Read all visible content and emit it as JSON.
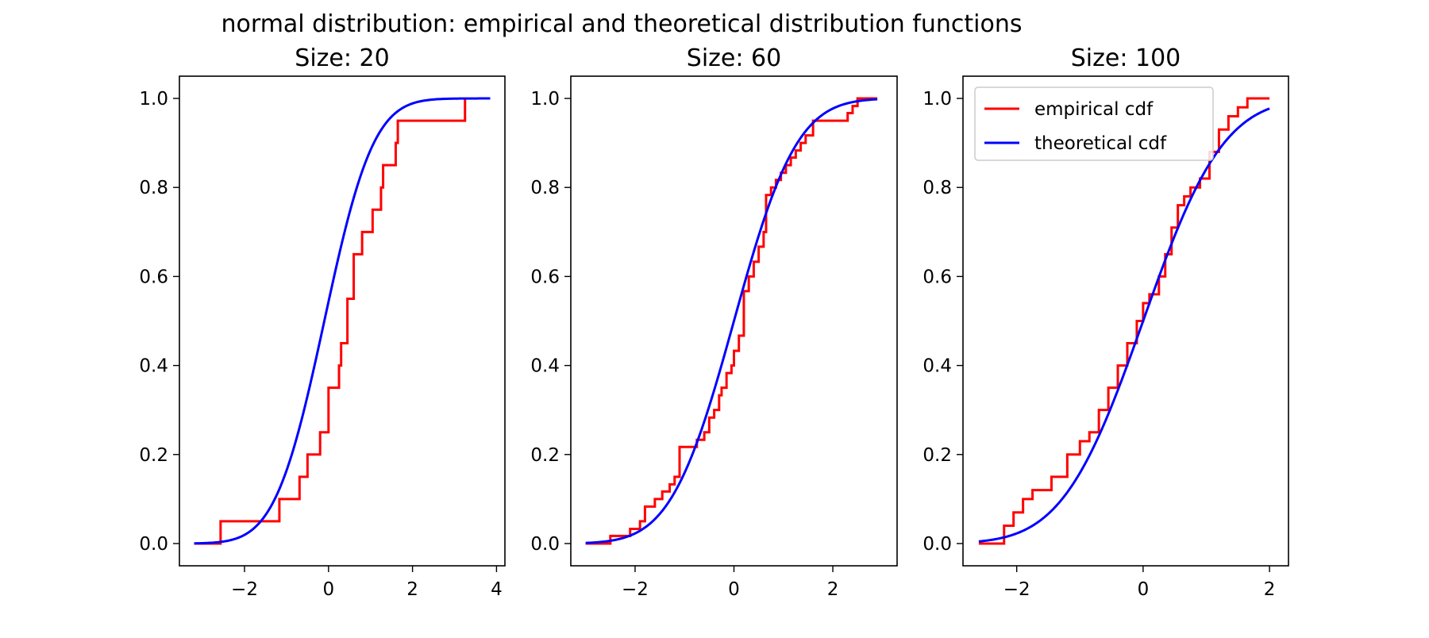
{
  "figure": {
    "title": "normal distribution: empirical and theoretical distribution functions"
  },
  "legend": {
    "empirical_label": "empirical cdf",
    "theoretical_label": "theoretical cdf",
    "placement": "upper-left of third panel"
  },
  "colors": {
    "empirical": "#ff0000",
    "theoretical": "#0000ff",
    "axes": "#000000",
    "background": "#ffffff"
  },
  "chart_data": [
    {
      "type": "line",
      "title": "Size: 20",
      "xlabel": "",
      "ylabel": "",
      "xlim": [
        -3.55,
        4.2
      ],
      "ylim": [
        -0.05,
        1.05
      ],
      "xticks": [
        -2,
        0,
        2,
        4
      ],
      "xtick_labels": [
        "−2",
        "0",
        "2",
        "4"
      ],
      "yticks": [
        0.0,
        0.2,
        0.4,
        0.6,
        0.8,
        1.0
      ],
      "ytick_labels": [
        "0.0",
        "0.2",
        "0.4",
        "0.6",
        "0.8",
        "1.0"
      ],
      "grid": false,
      "series": [
        {
          "name": "empirical cdf",
          "step": true,
          "x": [
            -3.2,
            -2.57,
            -1.17,
            -0.69,
            -0.5,
            -0.2,
            0.0,
            0.25,
            0.3,
            0.45,
            0.6,
            0.8,
            0.85,
            1.05,
            1.25,
            1.3,
            1.5,
            1.6,
            1.65,
            1.7,
            3.25,
            3.25
          ],
          "y": [
            0.0,
            0.05,
            0.1,
            0.15,
            0.2,
            0.25,
            0.35,
            0.4,
            0.45,
            0.55,
            0.65,
            0.7,
            0.7,
            0.75,
            0.8,
            0.85,
            0.85,
            0.9,
            0.95,
            0.95,
            1.0,
            1.0
          ]
        },
        {
          "name": "theoretical cdf",
          "distribution": "normal",
          "mu": -0.1,
          "sigma": 0.92,
          "x_range": [
            -3.2,
            3.85
          ]
        }
      ]
    },
    {
      "type": "line",
      "title": "Size: 60",
      "xlabel": "",
      "ylabel": "",
      "xlim": [
        -3.3,
        3.3
      ],
      "ylim": [
        -0.05,
        1.05
      ],
      "xticks": [
        -2,
        0,
        2
      ],
      "xtick_labels": [
        "−2",
        "0",
        "2"
      ],
      "yticks": [
        0.0,
        0.2,
        0.4,
        0.6,
        0.8,
        1.0
      ],
      "ytick_labels": [
        "0.0",
        "0.2",
        "0.4",
        "0.6",
        "0.8",
        "1.0"
      ],
      "grid": false,
      "series": [
        {
          "name": "empirical cdf",
          "step": true,
          "x": [
            -3.0,
            -2.5,
            -2.1,
            -1.9,
            -1.8,
            -1.6,
            -1.45,
            -1.3,
            -1.2,
            -1.1,
            -0.75,
            -0.6,
            -0.5,
            -0.4,
            -0.3,
            -0.25,
            -0.15,
            -0.05,
            0.0,
            0.1,
            0.2,
            0.3,
            0.4,
            0.5,
            0.6,
            0.65,
            0.75,
            0.85,
            0.95,
            1.05,
            1.15,
            1.25,
            1.35,
            1.45,
            1.6,
            2.3,
            2.4,
            2.5,
            2.9
          ],
          "y": [
            0.0,
            0.017,
            0.033,
            0.05,
            0.083,
            0.1,
            0.117,
            0.133,
            0.15,
            0.217,
            0.233,
            0.25,
            0.283,
            0.3,
            0.333,
            0.35,
            0.383,
            0.4,
            0.433,
            0.467,
            0.567,
            0.6,
            0.633,
            0.667,
            0.7,
            0.783,
            0.8,
            0.817,
            0.833,
            0.85,
            0.867,
            0.883,
            0.9,
            0.917,
            0.95,
            0.967,
            0.983,
            1.0,
            1.0
          ]
        },
        {
          "name": "theoretical cdf",
          "distribution": "normal",
          "mu": 0.0,
          "sigma": 1.0,
          "x_range": [
            -3.0,
            2.9
          ]
        }
      ]
    },
    {
      "type": "line",
      "title": "Size: 100",
      "xlabel": "",
      "ylabel": "",
      "xlim": [
        -2.85,
        2.3
      ],
      "ylim": [
        -0.05,
        1.05
      ],
      "xticks": [
        -2,
        0,
        2
      ],
      "xtick_labels": [
        "−2",
        "0",
        "2"
      ],
      "yticks": [
        0.0,
        0.2,
        0.4,
        0.6,
        0.8,
        1.0
      ],
      "ytick_labels": [
        "0.0",
        "0.2",
        "0.4",
        "0.6",
        "0.8",
        "1.0"
      ],
      "grid": false,
      "series": [
        {
          "name": "empirical cdf",
          "step": true,
          "x": [
            -2.6,
            -2.2,
            -2.05,
            -1.9,
            -1.75,
            -1.6,
            -1.45,
            -1.2,
            -1.0,
            -0.85,
            -0.7,
            -0.55,
            -0.4,
            -0.25,
            -0.1,
            0.0,
            0.1,
            0.25,
            0.35,
            0.45,
            0.55,
            0.65,
            0.75,
            0.9,
            1.05,
            1.2,
            1.35,
            1.5,
            1.65,
            2.0
          ],
          "y": [
            0.0,
            0.04,
            0.07,
            0.1,
            0.12,
            0.12,
            0.15,
            0.2,
            0.23,
            0.25,
            0.3,
            0.35,
            0.4,
            0.45,
            0.5,
            0.54,
            0.56,
            0.6,
            0.65,
            0.71,
            0.76,
            0.78,
            0.8,
            0.82,
            0.88,
            0.93,
            0.96,
            0.98,
            1.0,
            1.0
          ]
        },
        {
          "name": "theoretical cdf",
          "distribution": "normal",
          "mu": 0.0,
          "sigma": 1.0,
          "x_range": [
            -2.6,
            2.0
          ]
        }
      ]
    }
  ]
}
